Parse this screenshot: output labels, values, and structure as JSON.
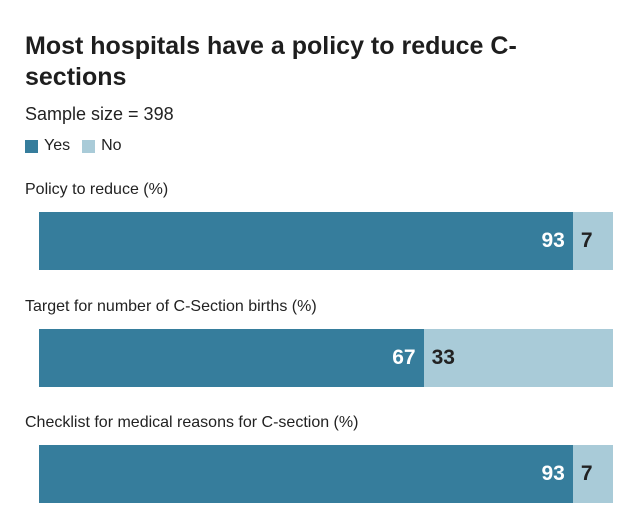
{
  "chart_data": {
    "type": "bar",
    "orientation": "horizontal",
    "stacked": true,
    "title": "Most hospitals have a policy to reduce C-sections",
    "subtitle": "Sample size = 398",
    "legend": {
      "placement": "top-left",
      "entries": [
        {
          "name": "Yes",
          "color": "#367d9c"
        },
        {
          "name": "No",
          "color": "#a9cbd8"
        }
      ]
    },
    "categories": [
      "Policy to reduce (%)",
      "Target for number of C-Section births (%)",
      "Checklist for medical reasons for C-section (%)"
    ],
    "series": [
      {
        "name": "Yes",
        "values": [
          93,
          67,
          93
        ],
        "color": "#367d9c"
      },
      {
        "name": "No",
        "values": [
          7,
          33,
          7
        ],
        "color": "#a9cbd8"
      }
    ],
    "xlim": [
      0,
      100
    ],
    "grid": false
  }
}
